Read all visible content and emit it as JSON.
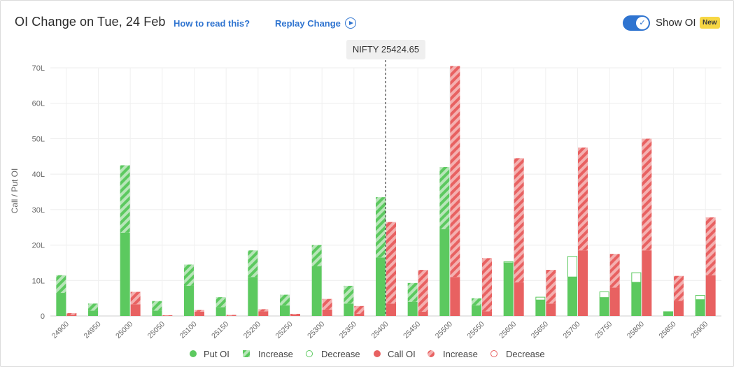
{
  "header": {
    "title": "OI Change on Tue, 24 Feb",
    "how_to_read": "How to read this?",
    "replay": "Replay Change",
    "show_oi": "Show OI",
    "badge": "New",
    "show_oi_enabled": true
  },
  "tooltip": {
    "text": "NIFTY 25424.65"
  },
  "legend": {
    "put_oi": "Put OI",
    "put_increase": "Increase",
    "put_decrease": "Decrease",
    "call_oi": "Call OI",
    "call_increase": "Increase",
    "call_decrease": "Decrease"
  },
  "colors": {
    "put": "#5cc95f",
    "call": "#e86161",
    "accent": "#2f74d0"
  },
  "chart_data": {
    "type": "bar",
    "ylabel": "Call / Put OI",
    "ylim": [
      0,
      70
    ],
    "yticks": [
      "0",
      "10L",
      "20L",
      "30L",
      "40L",
      "50L",
      "60L",
      "70L"
    ],
    "spot": 25424.65,
    "categories": [
      "24900",
      "24950",
      "25000",
      "25050",
      "25100",
      "25150",
      "25200",
      "25250",
      "25300",
      "25350",
      "25400",
      "25450",
      "25500",
      "25550",
      "25600",
      "25650",
      "25700",
      "25750",
      "25800",
      "25850",
      "25900"
    ],
    "series": [
      {
        "name": "Put OI",
        "base": [
          6.5,
          1.5,
          23.5,
          1.5,
          8.5,
          2.5,
          11,
          3,
          14,
          3.5,
          16.5,
          4,
          24.5,
          3,
          15,
          4.5,
          11,
          5.2,
          9.5,
          1.3,
          4.6
        ],
        "increase": [
          5,
          2,
          19,
          2.7,
          6,
          2.8,
          7.5,
          3,
          6,
          5,
          17,
          5.3,
          17.5,
          2,
          0,
          0,
          0,
          0,
          0,
          0,
          0
        ],
        "decrease": [
          0,
          0,
          0,
          0,
          0,
          0,
          0,
          0,
          0,
          0,
          0,
          0,
          0,
          0,
          0.3,
          0.8,
          5.8,
          1.6,
          2.7,
          0,
          1.2
        ]
      },
      {
        "name": "Call OI",
        "base": [
          0.3,
          0,
          3.3,
          0.1,
          1.2,
          0.1,
          1.3,
          0.4,
          1.8,
          0.6,
          3.5,
          1.2,
          11,
          1.3,
          9.5,
          3.5,
          18.5,
          8,
          18.5,
          4.3,
          11.5
        ],
        "increase": [
          0.5,
          0,
          3.5,
          0.1,
          0.5,
          0.2,
          0.6,
          0.2,
          3,
          2.2,
          23,
          11.8,
          59.5,
          15,
          35,
          9.5,
          29,
          9.5,
          31.5,
          7,
          16.3
        ],
        "decrease": [
          0,
          0,
          0,
          0,
          0,
          0,
          0,
          0,
          0,
          0,
          0,
          0,
          0,
          0,
          0,
          0,
          0,
          0,
          0,
          0,
          0
        ]
      }
    ],
    "grid": true,
    "legend_position": "bottom"
  }
}
